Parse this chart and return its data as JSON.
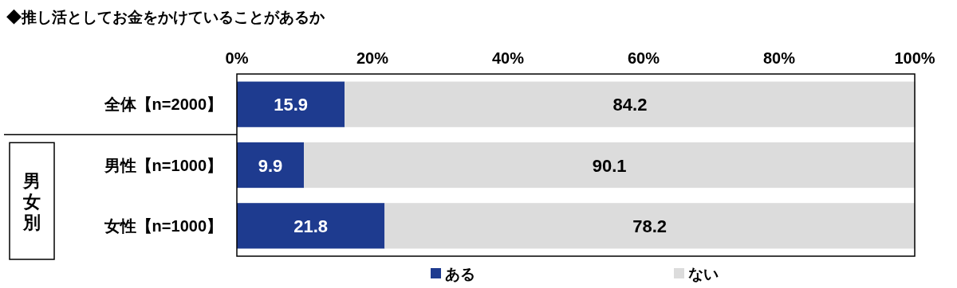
{
  "chart_data": {
    "type": "bar",
    "orientation": "horizontal",
    "stacked": true,
    "title": "◆推し活としてお金をかけていることがあるか",
    "categories": [
      "全体【n=2000】",
      "男性【n=1000】",
      "女性【n=1000】"
    ],
    "series": [
      {
        "name": "ある",
        "color": "#1e3b8f",
        "values": [
          15.9,
          9.9,
          21.8
        ]
      },
      {
        "name": "ない",
        "color": "#dcdcdc",
        "values": [
          84.2,
          90.1,
          78.2
        ]
      }
    ],
    "xlim": [
      0,
      100
    ],
    "xticks": [
      {
        "value": 0,
        "label": "0%"
      },
      {
        "value": 20,
        "label": "20%"
      },
      {
        "value": 40,
        "label": "40%"
      },
      {
        "value": 60,
        "label": "60%"
      },
      {
        "value": 80,
        "label": "80%"
      },
      {
        "value": 100,
        "label": "100%"
      }
    ],
    "data_labels": true,
    "legend": "bottom",
    "annotations": [
      "男女別"
    ]
  }
}
